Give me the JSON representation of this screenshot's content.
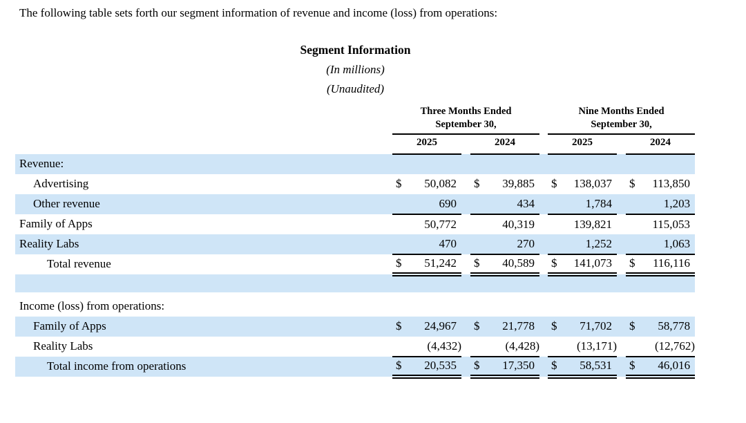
{
  "intro": "The following table sets forth our segment information of revenue and income (loss) from operations:",
  "title": "Segment Information",
  "units_note": "(In millions)",
  "unaudited_note": "(Unaudited)",
  "colors": {
    "row_highlight": "#cfe5f7",
    "text": "#000000",
    "rule": "#000000"
  },
  "table": {
    "period_headers": [
      "Three Months Ended September 30,",
      "Nine Months Ended September 30,"
    ],
    "year_headers": [
      "2025",
      "2024",
      "2025",
      "2024"
    ],
    "rows": [
      {
        "type": "data",
        "label": "Revenue:",
        "indent": 0,
        "shaded": true,
        "dollar": false,
        "values": [
          "",
          "",
          "",
          ""
        ],
        "underline": "none"
      },
      {
        "type": "data",
        "label": "Advertising",
        "indent": 1,
        "shaded": false,
        "dollar": true,
        "values": [
          "50,082",
          "39,885",
          "138,037",
          "113,850"
        ],
        "underline": "none"
      },
      {
        "type": "data",
        "label": "Other revenue",
        "indent": 1,
        "shaded": true,
        "dollar": false,
        "values": [
          "690",
          "434",
          "1,784",
          "1,203"
        ],
        "underline": "single"
      },
      {
        "type": "data",
        "label": "Family of Apps",
        "indent": 0,
        "shaded": false,
        "dollar": false,
        "values": [
          "50,772",
          "40,319",
          "139,821",
          "115,053"
        ],
        "underline": "none"
      },
      {
        "type": "data",
        "label": "Reality Labs",
        "indent": 0,
        "shaded": true,
        "dollar": false,
        "values": [
          "470",
          "270",
          "1,252",
          "1,063"
        ],
        "underline": "single"
      },
      {
        "type": "data",
        "label": "Total revenue",
        "indent": 2,
        "shaded": false,
        "dollar": true,
        "values": [
          "51,242",
          "40,589",
          "141,073",
          "116,116"
        ],
        "underline": "double"
      },
      {
        "type": "blank",
        "shaded": true
      },
      {
        "type": "gap"
      },
      {
        "type": "data",
        "label": "Income (loss) from operations:",
        "indent": 0,
        "shaded": false,
        "dollar": false,
        "values": [
          "",
          "",
          "",
          ""
        ],
        "underline": "none"
      },
      {
        "type": "data",
        "label": "Family of Apps",
        "indent": 1,
        "shaded": true,
        "dollar": true,
        "values": [
          "24,967",
          "21,778",
          "71,702",
          "58,778"
        ],
        "underline": "none"
      },
      {
        "type": "data",
        "label": "Reality Labs",
        "indent": 1,
        "shaded": false,
        "dollar": false,
        "values": [
          "(4,432)",
          "(4,428)",
          "(13,171)",
          "(12,762)"
        ],
        "underline": "single"
      },
      {
        "type": "data",
        "label": "Total income from operations",
        "indent": 2,
        "shaded": true,
        "dollar": true,
        "values": [
          "20,535",
          "17,350",
          "58,531",
          "46,016"
        ],
        "underline": "double"
      }
    ]
  }
}
